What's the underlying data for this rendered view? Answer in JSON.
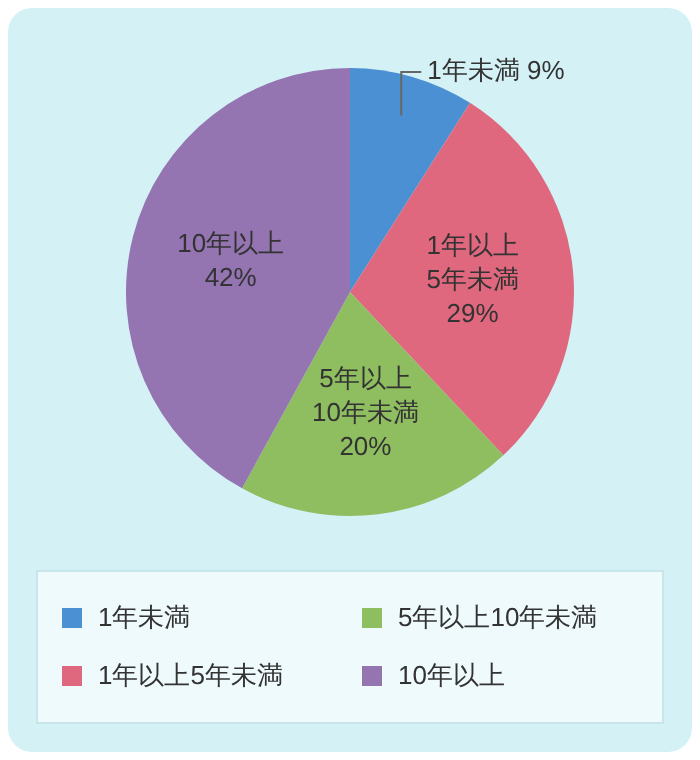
{
  "chart_data": {
    "type": "pie",
    "categories": [
      "1年未満",
      "1年以上5年未満",
      "5年以上10年未満",
      "10年以上"
    ],
    "values": [
      9,
      29,
      20,
      42
    ],
    "colors": [
      "#4a90d2",
      "#e0687e",
      "#8fbe60",
      "#9574b2"
    ],
    "value_labels": [
      "1年未満 9%",
      "1年以上\n5年未満\n29%",
      "5年以上\n10年未満\n20%",
      "10年以上\n42%"
    ],
    "legend": "bottom"
  }
}
